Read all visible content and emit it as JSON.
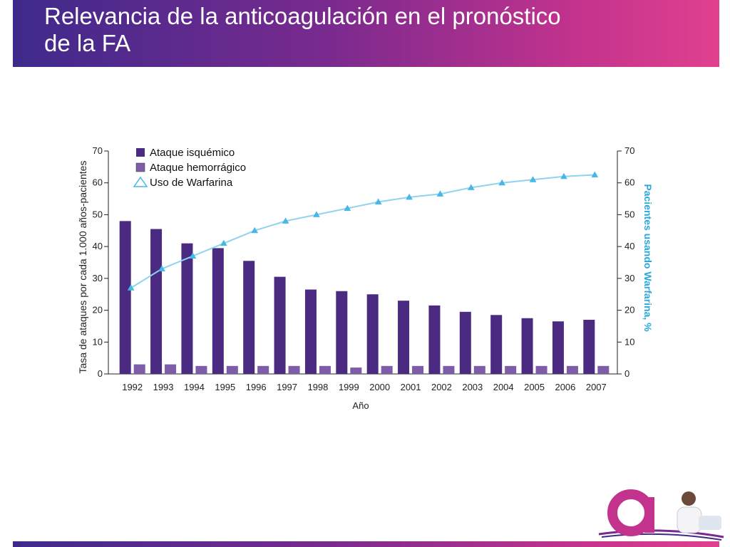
{
  "slide": {
    "title_line1": "Relevancia de la anticoagulación en el pronóstico",
    "title_line2": "de la FA"
  },
  "colors": {
    "ischemic": "#4b2a82",
    "hemorrhagic": "#7d5ca8",
    "warfarin": "#8fd3ef",
    "warfarin_marker": "#47b8e6",
    "right_axis_label": "#2aa8dc",
    "header_start": "#3e2a8c",
    "header_end": "#e0418e"
  },
  "chart_data": {
    "type": "bar",
    "title": "",
    "xlabel": "Año",
    "ylabel": "Tasa de ataques por cada 1.000 años-pacientes",
    "y2label": "Pacientes usando Warfarina, %",
    "ylim": [
      0,
      70
    ],
    "y2lim": [
      0,
      70
    ],
    "yticks": [
      0,
      10,
      20,
      30,
      40,
      50,
      60,
      70
    ],
    "categories": [
      "1992",
      "1993",
      "1994",
      "1995",
      "1996",
      "1997",
      "1998",
      "1999",
      "2000",
      "2001",
      "2002",
      "2003",
      "2004",
      "2005",
      "2006",
      "2007"
    ],
    "legend_position": "top-left",
    "series": [
      {
        "name": "Ataque isquémico",
        "kind": "bar",
        "axis": "left",
        "values": [
          48,
          45.5,
          41,
          39.5,
          35.5,
          30.5,
          26.5,
          26,
          25,
          23,
          21.5,
          19.5,
          18.5,
          17.5,
          16.5,
          17
        ]
      },
      {
        "name": "Ataque hemorrágico",
        "kind": "bar",
        "axis": "left",
        "values": [
          3,
          3,
          2.5,
          2.5,
          2.5,
          2.5,
          2.5,
          2,
          2.5,
          2.5,
          2.5,
          2.5,
          2.5,
          2.5,
          2.5,
          2.5
        ]
      },
      {
        "name": "Uso de Warfarina",
        "kind": "line",
        "axis": "right",
        "values": [
          27,
          33,
          37,
          41,
          45,
          48,
          50,
          52,
          54,
          55.5,
          56.5,
          58.5,
          60,
          61,
          62,
          62.5
        ]
      }
    ]
  }
}
